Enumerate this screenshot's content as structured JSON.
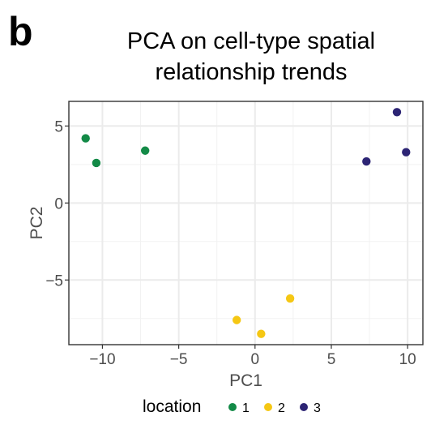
{
  "panel_label": "b",
  "chart_data": {
    "type": "scatter",
    "title_lines": [
      "PCA on cell-type spatial",
      "relationship trends"
    ],
    "xlabel": "PC1",
    "ylabel": "PC2",
    "xlim": [
      -12.2,
      11.0
    ],
    "ylim": [
      -9.2,
      6.6
    ],
    "x_ticks": [
      -10,
      -5,
      0,
      5,
      10
    ],
    "x_tick_labels": [
      "−10",
      "−5",
      "0",
      "5",
      "10"
    ],
    "y_ticks": [
      -5,
      0,
      5
    ],
    "y_tick_labels": [
      "−5",
      "0",
      "5"
    ],
    "grid": true,
    "legend": {
      "title": "location",
      "placement": "bottom",
      "entries": [
        {
          "label": "1",
          "color": "#138a47"
        },
        {
          "label": "2",
          "color": "#f5c714"
        },
        {
          "label": "3",
          "color": "#2c2474"
        }
      ]
    },
    "series": [
      {
        "name": "1",
        "color": "#138a47",
        "points": [
          [
            -11.1,
            4.2
          ],
          [
            -10.4,
            2.6
          ],
          [
            -7.2,
            3.4
          ]
        ]
      },
      {
        "name": "2",
        "color": "#f5c714",
        "points": [
          [
            -1.2,
            -7.6
          ],
          [
            0.4,
            -8.5
          ],
          [
            2.3,
            -6.2
          ]
        ]
      },
      {
        "name": "3",
        "color": "#2c2474",
        "points": [
          [
            7.3,
            2.7
          ],
          [
            9.3,
            5.9
          ],
          [
            9.9,
            3.3
          ]
        ]
      }
    ]
  }
}
